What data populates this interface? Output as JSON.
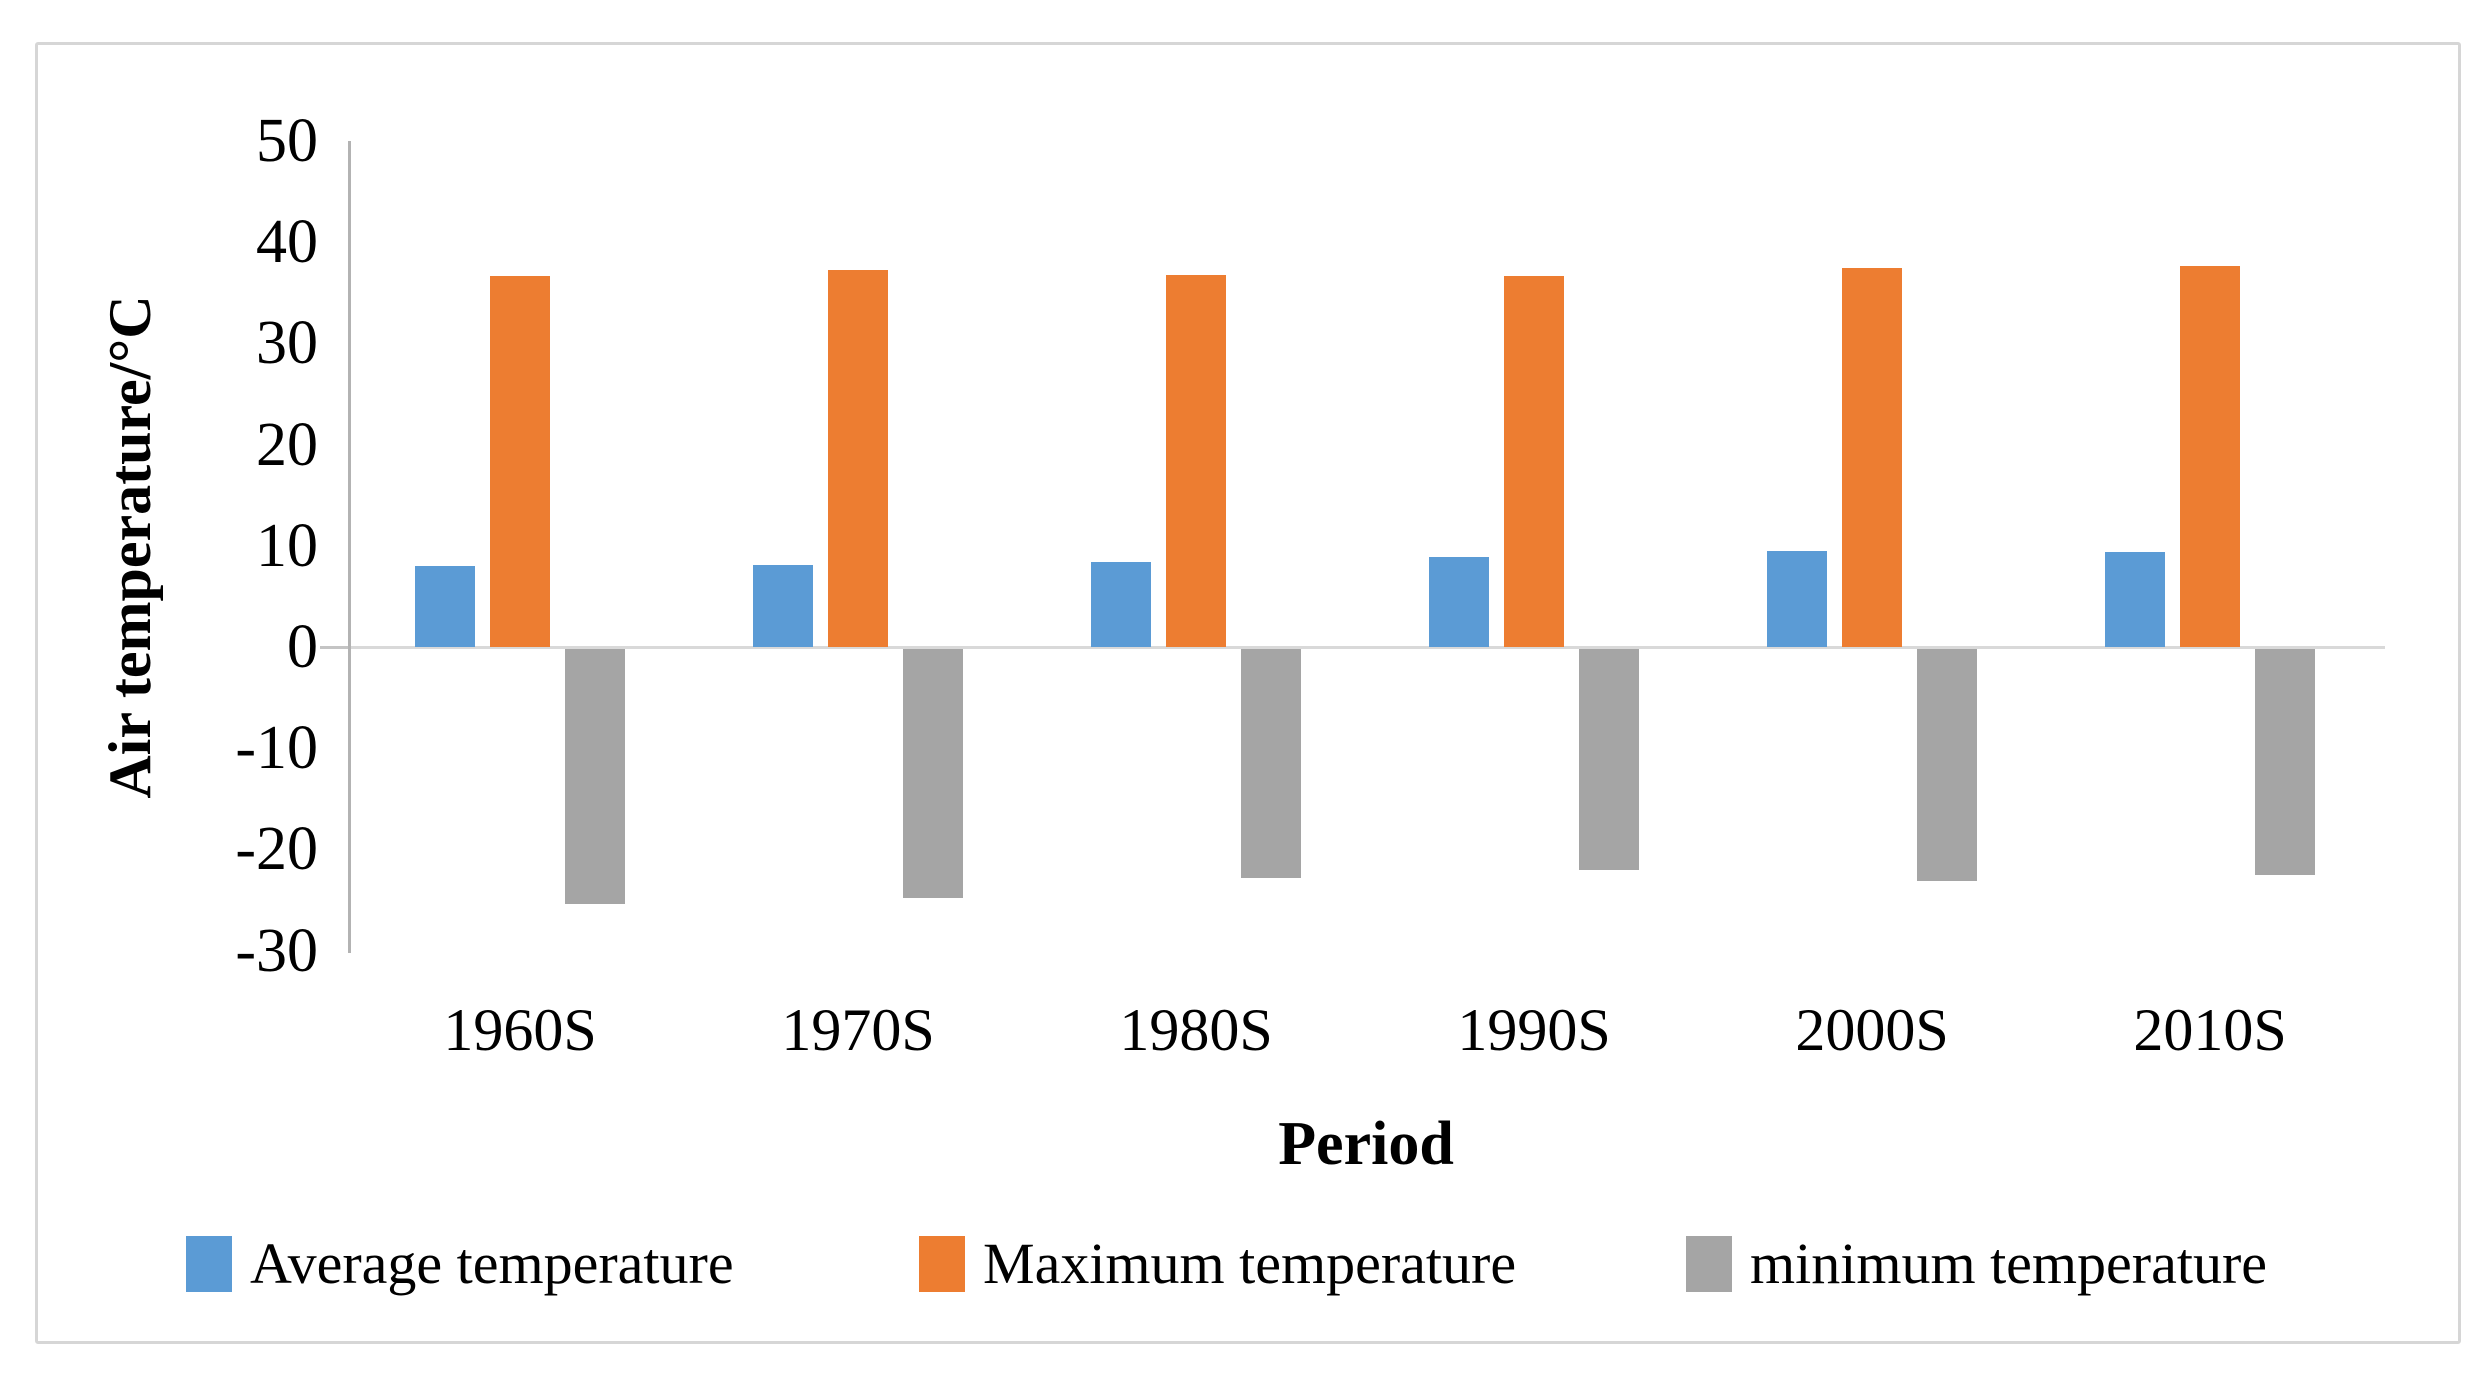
{
  "chart_data": {
    "type": "bar",
    "title": "",
    "xlabel": "Period",
    "ylabel": "Air temperature/°C",
    "categories": [
      "1960S",
      "1970S",
      "1980S",
      "1990S",
      "2000S",
      "2010S"
    ],
    "series": [
      {
        "name": "Average temperature",
        "color": "#5B9BD5",
        "values": [
          8.0,
          8.1,
          8.4,
          8.9,
          9.5,
          9.4
        ]
      },
      {
        "name": "Maximum temperature",
        "color": "#ED7D31",
        "values": [
          36.7,
          37.3,
          36.8,
          36.7,
          37.5,
          37.6
        ]
      },
      {
        "name": "minimum temperature",
        "color": "#A5A5A5",
        "values": [
          -25.2,
          -24.6,
          -22.6,
          -21.8,
          -22.9,
          -22.3
        ]
      }
    ],
    "ylim": [
      -30,
      50
    ],
    "yticks": [
      50,
      40,
      30,
      20,
      10,
      0,
      -10,
      -20,
      -30
    ],
    "grid": false,
    "legend_position": "bottom"
  }
}
